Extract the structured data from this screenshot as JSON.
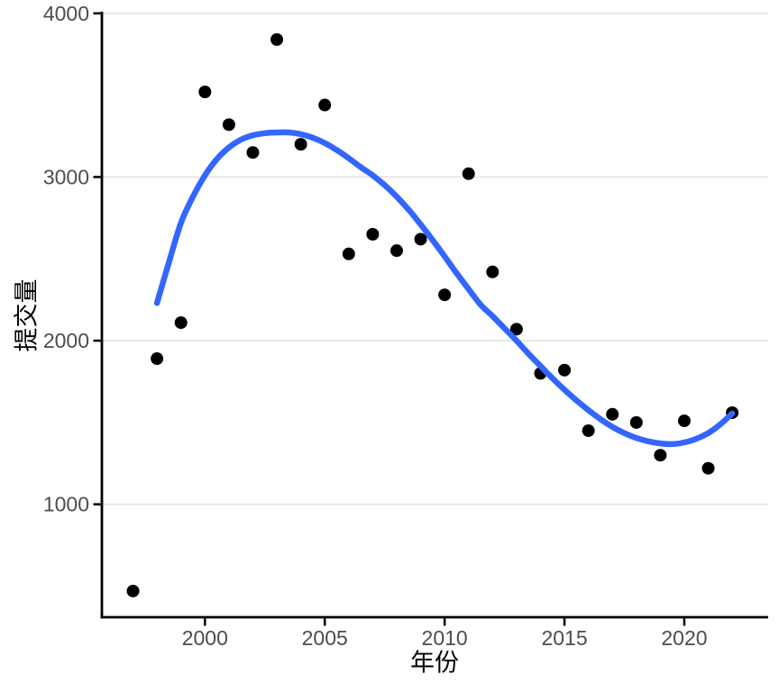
{
  "chart_data": {
    "type": "scatter",
    "title": "",
    "xlabel": "年份",
    "ylabel": "提交量",
    "x_ticks": [
      2000,
      2005,
      2010,
      2015,
      2020
    ],
    "y_ticks": [
      1000,
      2000,
      3000,
      4000
    ],
    "xlim": [
      1995.7,
      2023.5
    ],
    "ylim": [
      310,
      4010
    ],
    "grid": "horizontal-major-only",
    "legend": "none",
    "colors": {
      "point": "#000000",
      "smooth_line": "#3366FF",
      "gridline": "#E5E5E5",
      "axis_line": "#000000",
      "tick_label": "#4D4D4D",
      "axis_title": "#000000",
      "background": "#FFFFFF"
    },
    "points": {
      "x": [
        1997,
        1998,
        1999,
        2000,
        2001,
        2002,
        2003,
        2004,
        2005,
        2006,
        2007,
        2008,
        2009,
        2010,
        2011,
        2012,
        2013,
        2014,
        2015,
        2016,
        2017,
        2018,
        2019,
        2020,
        2021,
        2022
      ],
      "y": [
        470,
        1890,
        2110,
        3520,
        3320,
        3150,
        3840,
        3200,
        3440,
        2530,
        2650,
        2550,
        2620,
        2280,
        3020,
        2420,
        2070,
        1800,
        1820,
        1450,
        1550,
        1500,
        1300,
        1510,
        1220,
        1560
      ]
    },
    "smooth_line": {
      "x": [
        1998,
        1998.5,
        1999,
        1999.5,
        2000,
        2000.5,
        2001,
        2001.5,
        2002,
        2002.5,
        2003,
        2003.5,
        2004,
        2004.5,
        2005,
        2005.5,
        2006,
        2006.5,
        2007,
        2007.5,
        2008,
        2008.5,
        2009,
        2009.5,
        2010,
        2010.5,
        2011,
        2011.5,
        2012,
        2012.5,
        2013,
        2013.5,
        2014,
        2014.5,
        2015,
        2015.5,
        2016,
        2016.5,
        2017,
        2017.5,
        2018,
        2018.5,
        2019,
        2019.5,
        2020,
        2020.5,
        2021,
        2021.5,
        2022
      ],
      "y": [
        2230,
        2480,
        2720,
        2880,
        3010,
        3110,
        3180,
        3228,
        3255,
        3268,
        3272,
        3272,
        3262,
        3240,
        3208,
        3165,
        3115,
        3060,
        3010,
        2950,
        2880,
        2800,
        2710,
        2615,
        2515,
        2412,
        2315,
        2220,
        2150,
        2075,
        2000,
        1920,
        1845,
        1770,
        1700,
        1635,
        1575,
        1520,
        1473,
        1435,
        1405,
        1385,
        1372,
        1368,
        1378,
        1400,
        1435,
        1488,
        1555
      ]
    }
  }
}
